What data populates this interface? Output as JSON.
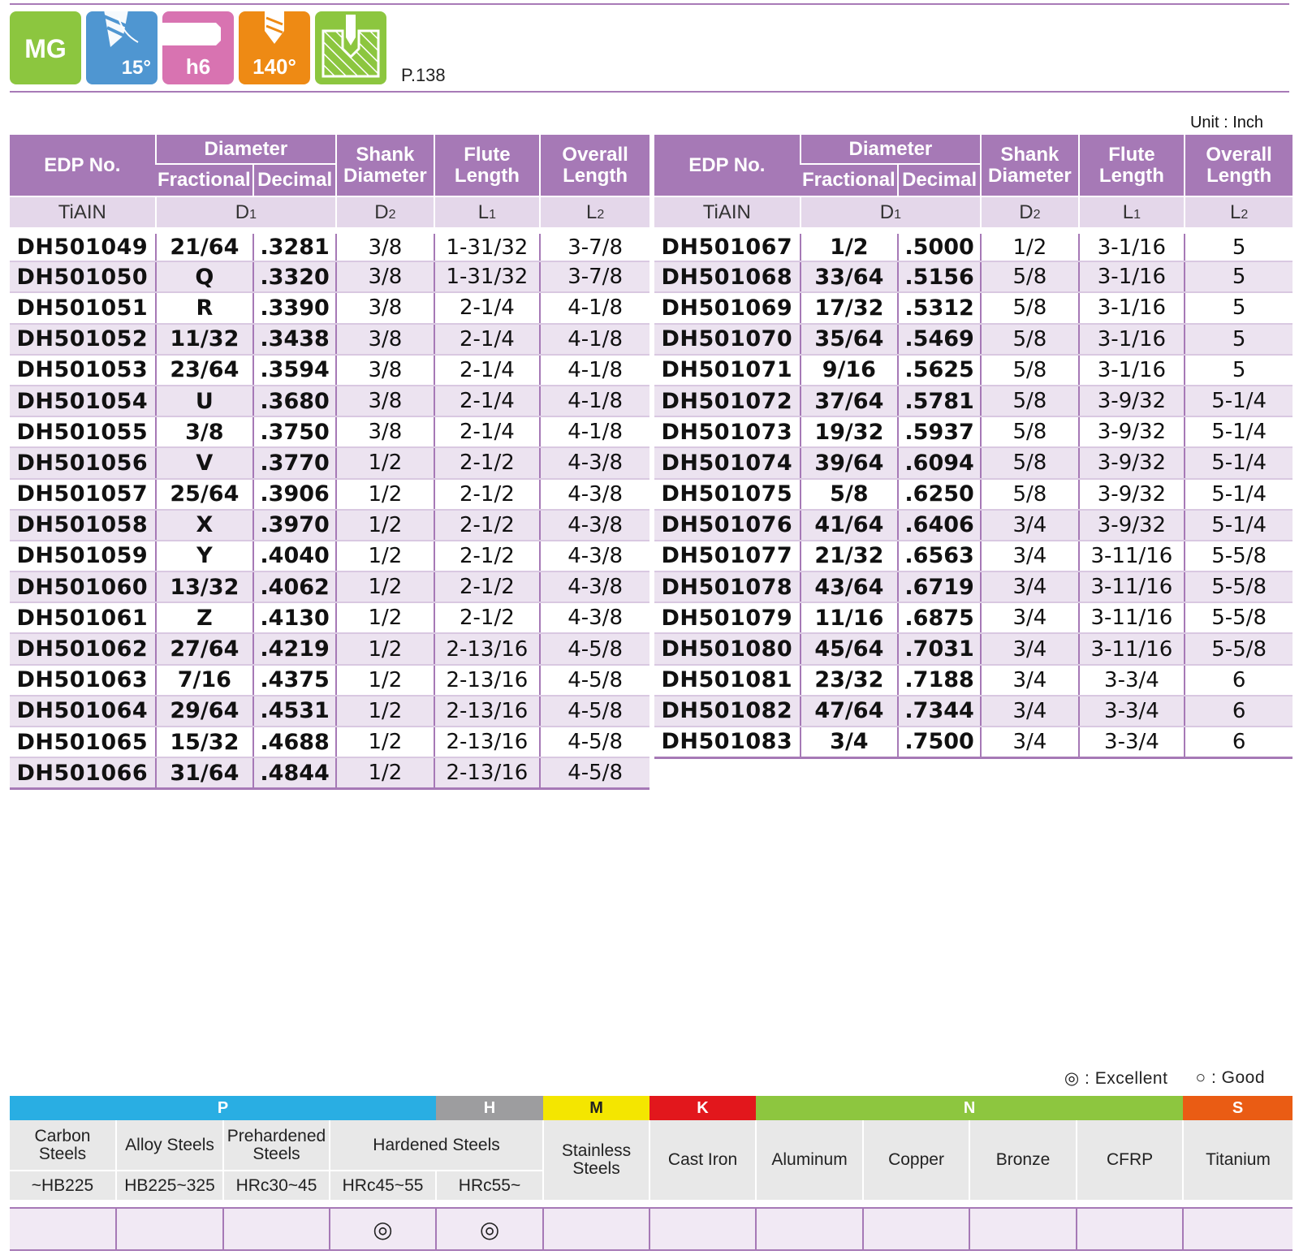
{
  "badges": [
    {
      "name": "mg-badge",
      "label": "MG",
      "color": "#8cc63f"
    },
    {
      "name": "helix-angle-badge",
      "label": "15°",
      "color": "#4f96d1"
    },
    {
      "name": "shank-tolerance-badge",
      "label": "h6",
      "color": "#d873b1"
    },
    {
      "name": "point-angle-badge",
      "label": "140°",
      "color": "#ee8a14"
    },
    {
      "name": "hole-type-badge",
      "label": "",
      "color": "#8cc63f"
    }
  ],
  "page_ref": "P.138",
  "unit": "Unit : Inch",
  "headers": {
    "edp": "EDP No.",
    "diameter": "Diameter",
    "fractional": "Fractional",
    "decimal": "Decimal",
    "shank": "Shank Diameter",
    "flute": "Flute Length",
    "overall": "Overall Length",
    "coating": "TiAIN",
    "d1": "D1",
    "d2": "D2",
    "l1": "L1",
    "l2": "L2"
  },
  "left_rows": [
    {
      "edp": "DH501049",
      "frac": "21/64",
      "dec": ".3281",
      "d2": "3/8",
      "l1": "1-31/32",
      "l2": "3-7/8"
    },
    {
      "edp": "DH501050",
      "frac": "Q",
      "dec": ".3320",
      "d2": "3/8",
      "l1": "1-31/32",
      "l2": "3-7/8"
    },
    {
      "edp": "DH501051",
      "frac": "R",
      "dec": ".3390",
      "d2": "3/8",
      "l1": "2-1/4",
      "l2": "4-1/8"
    },
    {
      "edp": "DH501052",
      "frac": "11/32",
      "dec": ".3438",
      "d2": "3/8",
      "l1": "2-1/4",
      "l2": "4-1/8"
    },
    {
      "edp": "DH501053",
      "frac": "23/64",
      "dec": ".3594",
      "d2": "3/8",
      "l1": "2-1/4",
      "l2": "4-1/8"
    },
    {
      "edp": "DH501054",
      "frac": "U",
      "dec": ".3680",
      "d2": "3/8",
      "l1": "2-1/4",
      "l2": "4-1/8"
    },
    {
      "edp": "DH501055",
      "frac": "3/8",
      "dec": ".3750",
      "d2": "3/8",
      "l1": "2-1/4",
      "l2": "4-1/8"
    },
    {
      "edp": "DH501056",
      "frac": "V",
      "dec": ".3770",
      "d2": "1/2",
      "l1": "2-1/2",
      "l2": "4-3/8"
    },
    {
      "edp": "DH501057",
      "frac": "25/64",
      "dec": ".3906",
      "d2": "1/2",
      "l1": "2-1/2",
      "l2": "4-3/8"
    },
    {
      "edp": "DH501058",
      "frac": "X",
      "dec": ".3970",
      "d2": "1/2",
      "l1": "2-1/2",
      "l2": "4-3/8"
    },
    {
      "edp": "DH501059",
      "frac": "Y",
      "dec": ".4040",
      "d2": "1/2",
      "l1": "2-1/2",
      "l2": "4-3/8"
    },
    {
      "edp": "DH501060",
      "frac": "13/32",
      "dec": ".4062",
      "d2": "1/2",
      "l1": "2-1/2",
      "l2": "4-3/8"
    },
    {
      "edp": "DH501061",
      "frac": "Z",
      "dec": ".4130",
      "d2": "1/2",
      "l1": "2-1/2",
      "l2": "4-3/8"
    },
    {
      "edp": "DH501062",
      "frac": "27/64",
      "dec": ".4219",
      "d2": "1/2",
      "l1": "2-13/16",
      "l2": "4-5/8"
    },
    {
      "edp": "DH501063",
      "frac": "7/16",
      "dec": ".4375",
      "d2": "1/2",
      "l1": "2-13/16",
      "l2": "4-5/8"
    },
    {
      "edp": "DH501064",
      "frac": "29/64",
      "dec": ".4531",
      "d2": "1/2",
      "l1": "2-13/16",
      "l2": "4-5/8"
    },
    {
      "edp": "DH501065",
      "frac": "15/32",
      "dec": ".4688",
      "d2": "1/2",
      "l1": "2-13/16",
      "l2": "4-5/8"
    },
    {
      "edp": "DH501066",
      "frac": "31/64",
      "dec": ".4844",
      "d2": "1/2",
      "l1": "2-13/16",
      "l2": "4-5/8"
    }
  ],
  "right_rows": [
    {
      "edp": "DH501067",
      "frac": "1/2",
      "dec": ".5000",
      "d2": "1/2",
      "l1": "3-1/16",
      "l2": "5"
    },
    {
      "edp": "DH501068",
      "frac": "33/64",
      "dec": ".5156",
      "d2": "5/8",
      "l1": "3-1/16",
      "l2": "5"
    },
    {
      "edp": "DH501069",
      "frac": "17/32",
      "dec": ".5312",
      "d2": "5/8",
      "l1": "3-1/16",
      "l2": "5"
    },
    {
      "edp": "DH501070",
      "frac": "35/64",
      "dec": ".5469",
      "d2": "5/8",
      "l1": "3-1/16",
      "l2": "5"
    },
    {
      "edp": "DH501071",
      "frac": "9/16",
      "dec": ".5625",
      "d2": "5/8",
      "l1": "3-1/16",
      "l2": "5"
    },
    {
      "edp": "DH501072",
      "frac": "37/64",
      "dec": ".5781",
      "d2": "5/8",
      "l1": "3-9/32",
      "l2": "5-1/4"
    },
    {
      "edp": "DH501073",
      "frac": "19/32",
      "dec": ".5937",
      "d2": "5/8",
      "l1": "3-9/32",
      "l2": "5-1/4"
    },
    {
      "edp": "DH501074",
      "frac": "39/64",
      "dec": ".6094",
      "d2": "5/8",
      "l1": "3-9/32",
      "l2": "5-1/4"
    },
    {
      "edp": "DH501075",
      "frac": "5/8",
      "dec": ".6250",
      "d2": "5/8",
      "l1": "3-9/32",
      "l2": "5-1/4"
    },
    {
      "edp": "DH501076",
      "frac": "41/64",
      "dec": ".6406",
      "d2": "3/4",
      "l1": "3-9/32",
      "l2": "5-1/4"
    },
    {
      "edp": "DH501077",
      "frac": "21/32",
      "dec": ".6563",
      "d2": "3/4",
      "l1": "3-11/16",
      "l2": "5-5/8"
    },
    {
      "edp": "DH501078",
      "frac": "43/64",
      "dec": ".6719",
      "d2": "3/4",
      "l1": "3-11/16",
      "l2": "5-5/8"
    },
    {
      "edp": "DH501079",
      "frac": "11/16",
      "dec": ".6875",
      "d2": "3/4",
      "l1": "3-11/16",
      "l2": "5-5/8"
    },
    {
      "edp": "DH501080",
      "frac": "45/64",
      "dec": ".7031",
      "d2": "3/4",
      "l1": "3-11/16",
      "l2": "5-5/8"
    },
    {
      "edp": "DH501081",
      "frac": "23/32",
      "dec": ".7188",
      "d2": "3/4",
      "l1": "3-3/4",
      "l2": "6"
    },
    {
      "edp": "DH501082",
      "frac": "47/64",
      "dec": ".7344",
      "d2": "3/4",
      "l1": "3-3/4",
      "l2": "6"
    },
    {
      "edp": "DH501083",
      "frac": "3/4",
      "dec": ".7500",
      "d2": "3/4",
      "l1": "3-3/4",
      "l2": "6"
    }
  ],
  "legend": {
    "excellent": "◎ : Excellent",
    "good": "○ : Good"
  },
  "material_groups": {
    "p": {
      "label": "P",
      "color": "#29aee3"
    },
    "h": {
      "label": "H",
      "color": "#9d9d9f"
    },
    "m": {
      "label": "M",
      "color": "#f4e600"
    },
    "k": {
      "label": "K",
      "color": "#e2171c"
    },
    "n": {
      "label": "N",
      "color": "#8dc63f"
    },
    "s": {
      "label": "S",
      "color": "#ea5c14"
    }
  },
  "materials": {
    "carbon": "Carbon Steels",
    "alloy": "Alloy Steels",
    "prehardened": "Prehardened Steels",
    "hardened": "Hardened Steels",
    "stainless": "Stainless Steels",
    "cast_iron": "Cast Iron",
    "aluminum": "Aluminum",
    "copper": "Copper",
    "bronze": "Bronze",
    "cfrp": "CFRP",
    "titanium": "Titanium"
  },
  "hardness": {
    "carbon": "~HB225",
    "alloy": "HB225~325",
    "prehardened": "HRc30~45",
    "hard1": "HRc45~55",
    "hard2": "HRc55~"
  },
  "ratings": [
    "",
    "",
    "",
    "◎",
    "◎",
    "",
    "",
    "",
    "",
    "",
    "",
    ""
  ]
}
